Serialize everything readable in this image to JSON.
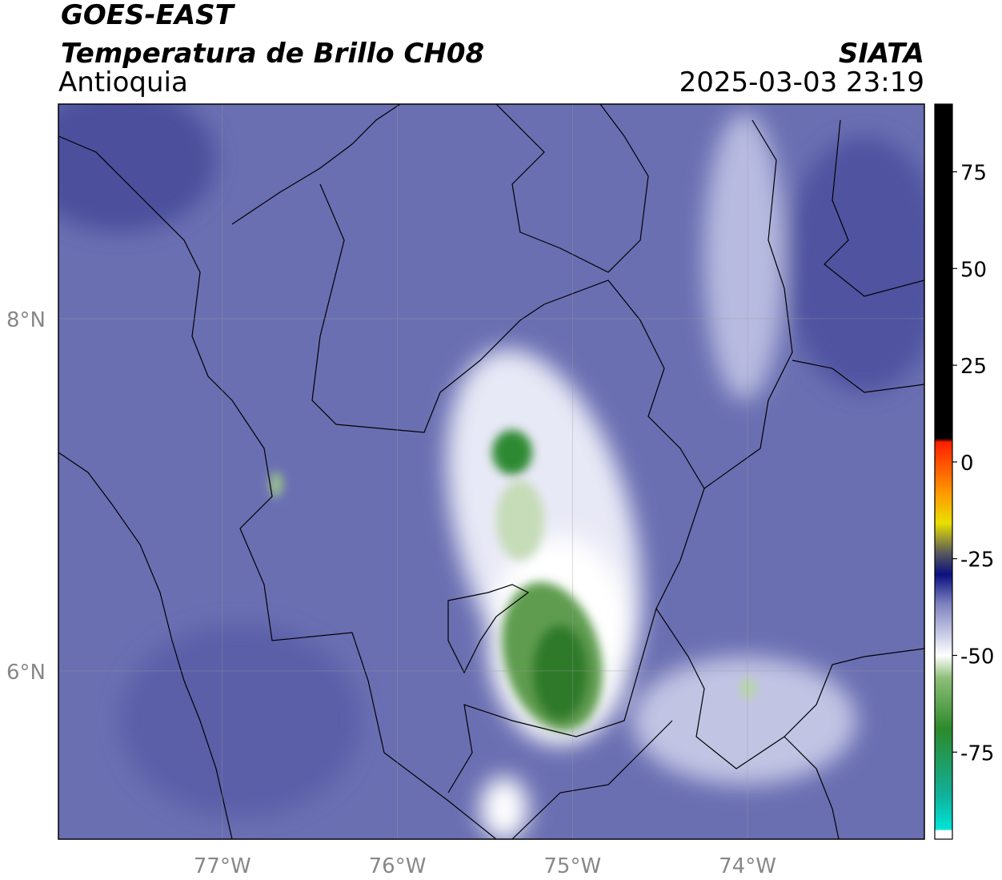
{
  "header": {
    "title": "GOES-EAST",
    "subtitle": "Temperatura de Brillo CH08",
    "region": "Antioquia",
    "source": "SIATA",
    "timestamp": "2025-03-03 23:19"
  },
  "map": {
    "lon_range": [
      -77.936,
      -72.99
    ],
    "lat_range": [
      5.045,
      9.218
    ],
    "lon_ticks": [
      {
        "value": -77,
        "label": "77°W"
      },
      {
        "value": -76,
        "label": "76°W"
      },
      {
        "value": -75,
        "label": "75°W"
      },
      {
        "value": -74,
        "label": "74°W"
      }
    ],
    "lat_ticks": [
      {
        "value": 8,
        "label": "8°N"
      },
      {
        "value": 6,
        "label": "6°N"
      }
    ]
  },
  "colorbar": {
    "range": [
      -97.5,
      92.5
    ],
    "ticks": [
      75,
      50,
      25,
      0,
      -25,
      -50,
      -75
    ]
  }
}
